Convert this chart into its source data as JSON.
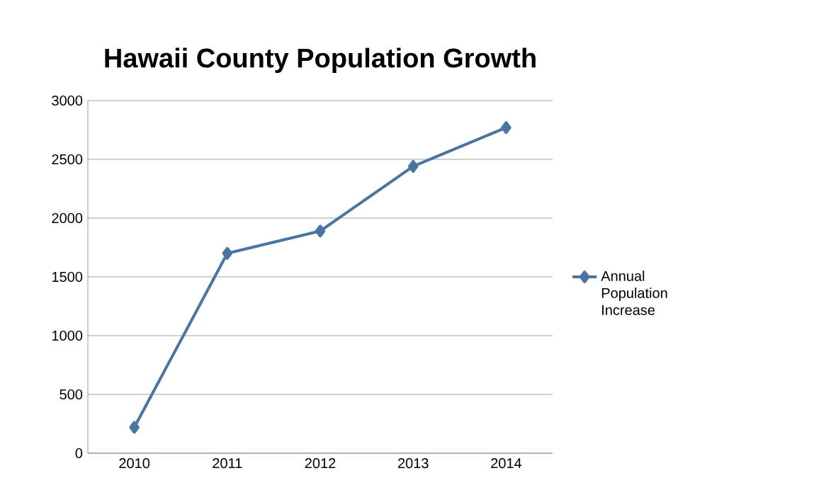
{
  "chart_data": {
    "type": "line",
    "title": "Hawaii County Population Growth",
    "categories": [
      "2010",
      "2011",
      "2012",
      "2013",
      "2014"
    ],
    "series": [
      {
        "name": "Annual Population Increase",
        "color": "#4a74a2",
        "values": [
          220,
          1700,
          1890,
          2440,
          2770
        ]
      }
    ],
    "ylim": [
      0,
      3000
    ],
    "yticks": [
      0,
      500,
      1000,
      1500,
      2000,
      2500,
      3000
    ],
    "grid": "y",
    "legend": "right",
    "marker": "diamond",
    "line_style": "solid"
  }
}
